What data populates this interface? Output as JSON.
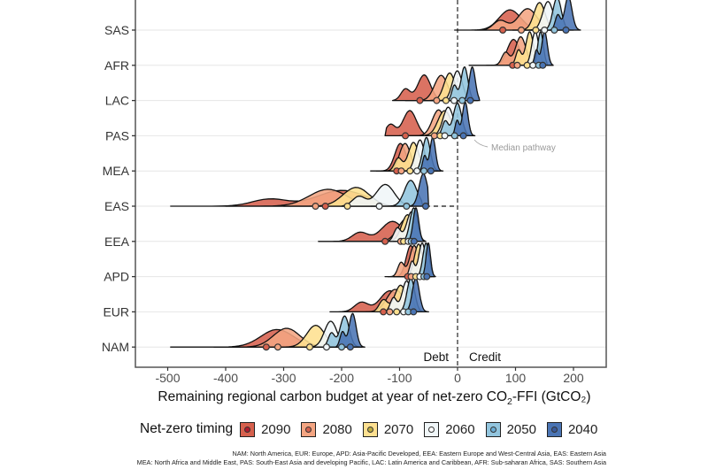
{
  "chart_data": {
    "type": "ridgeline",
    "xlabel": "Remaining regional carbon budget at year of net-zero CO₂-FFI (GtCO₂)",
    "xlabel_parts": {
      "before": "Remaining regional carbon budget at year of net-zero CO",
      "sub": "2",
      "after": "-FFI (GtCO₂)"
    },
    "xlim": [
      -555,
      255
    ],
    "xticks": [
      -500,
      -400,
      -300,
      -200,
      -100,
      0,
      100,
      200
    ],
    "xtick_labels": [
      "-500",
      "-400",
      "-300",
      "-200",
      "-100",
      "0",
      "100",
      "200"
    ],
    "grid": true,
    "reference_line": 0,
    "annotations": {
      "debt": "Debt",
      "credit": "Credit",
      "median": "Median pathway"
    },
    "regions": [
      "SAS",
      "AFR",
      "LAC",
      "PAS",
      "MEA",
      "EAS",
      "EEA",
      "APD",
      "EUR",
      "NAM"
    ],
    "legend": {
      "title": "Net-zero timing",
      "position": "bottom",
      "entries": [
        {
          "label": "2090",
          "color": "#d6604d",
          "dot": "#b2182b"
        },
        {
          "label": "2080",
          "color": "#f4a582",
          "dot": "#d6604d"
        },
        {
          "label": "2070",
          "color": "#fee090",
          "dot": "#bfae3f"
        },
        {
          "label": "2060",
          "color": "#f0f6f8",
          "dot": "#ffffff"
        },
        {
          "label": "2050",
          "color": "#92c5de",
          "dot": "#6baed6"
        },
        {
          "label": "2040",
          "color": "#4a74b4",
          "dot": "#3a5a9a"
        }
      ]
    },
    "series": [
      {
        "region": "SAS",
        "medians": [
          78,
          110,
          135,
          150,
          167,
          187
        ],
        "ranges": [
          [
            -5,
            150
          ],
          [
            30,
            165
          ],
          [
            95,
            175
          ],
          [
            115,
            190
          ],
          [
            140,
            200
          ],
          [
            160,
            212
          ]
        ]
      },
      {
        "region": "AFR",
        "medians": [
          95,
          103,
          120,
          130,
          140,
          147
        ],
        "ranges": [
          [
            20,
            110
          ],
          [
            50,
            125
          ],
          [
            85,
            140
          ],
          [
            100,
            150
          ],
          [
            115,
            155
          ],
          [
            125,
            165
          ]
        ]
      },
      {
        "region": "LAC",
        "medians": [
          -65,
          -36,
          -20,
          -6,
          8,
          22
        ],
        "ranges": [
          [
            -112,
            -20
          ],
          [
            -90,
            5
          ],
          [
            -65,
            15
          ],
          [
            -45,
            25
          ],
          [
            -15,
            35
          ],
          [
            -5,
            38
          ]
        ]
      },
      {
        "region": "PAS",
        "medians": [
          -90,
          -40,
          -30,
          -22,
          -5,
          10
        ],
        "ranges": [
          [
            -125,
            -30
          ],
          [
            -100,
            -10
          ],
          [
            -90,
            5
          ],
          [
            -60,
            15
          ],
          [
            -35,
            25
          ],
          [
            -10,
            30
          ]
        ]
      },
      {
        "region": "MEA",
        "medians": [
          -105,
          -97,
          -82,
          -70,
          -58,
          -46
        ],
        "ranges": [
          [
            -150,
            -70
          ],
          [
            -140,
            -60
          ],
          [
            -120,
            -45
          ],
          [
            -100,
            -35
          ],
          [
            -85,
            -30
          ],
          [
            -65,
            -25
          ]
        ]
      },
      {
        "region": "EAS",
        "medians": [
          -228,
          -245,
          -190,
          -135,
          -88,
          -55
        ],
        "ranges": [
          [
            -495,
            -140
          ],
          [
            -400,
            -130
          ],
          [
            -300,
            -110
          ],
          [
            -200,
            -70
          ],
          [
            -150,
            -60
          ],
          [
            -110,
            -50
          ]
        ]
      },
      {
        "region": "EEA",
        "medians": [
          -125,
          -98,
          -93,
          -85,
          -80,
          -75
        ],
        "ranges": [
          [
            -240,
            -80
          ],
          [
            -190,
            -70
          ],
          [
            -150,
            -65
          ],
          [
            -130,
            -60
          ],
          [
            -110,
            -55
          ],
          [
            -95,
            -55
          ]
        ]
      },
      {
        "region": "APD",
        "medians": [
          -86,
          -80,
          -72,
          -65,
          -58,
          -53
        ],
        "ranges": [
          [
            -125,
            -60
          ],
          [
            -120,
            -55
          ],
          [
            -110,
            -50
          ],
          [
            -95,
            -45
          ],
          [
            -85,
            -40
          ],
          [
            -70,
            -38
          ]
        ]
      },
      {
        "region": "EUR",
        "medians": [
          -128,
          -117,
          -105,
          -93,
          -85,
          -76
        ],
        "ranges": [
          [
            -220,
            -80
          ],
          [
            -190,
            -70
          ],
          [
            -150,
            -65
          ],
          [
            -125,
            -60
          ],
          [
            -110,
            -55
          ],
          [
            -100,
            -50
          ]
        ]
      },
      {
        "region": "NAM",
        "medians": [
          -330,
          -310,
          -255,
          -226,
          -200,
          -185
        ],
        "ranges": [
          [
            -495,
            -260
          ],
          [
            -420,
            -230
          ],
          [
            -330,
            -200
          ],
          [
            -270,
            -180
          ],
          [
            -230,
            -165
          ],
          [
            -210,
            -160
          ]
        ]
      }
    ]
  },
  "footnotes": [
    "NAM: North America, EUR: Europe, APD: Asia-Pacific Developed, EEA: Eastern Europe and West-Central Asia, EAS: Eastern Asia",
    "MEA: North Africa and Middle East, PAS: South-East Asia and developing Pacific, LAC: Latin America and Caribbean, AFR: Sub-saharan Africa, SAS: Southern Asia"
  ]
}
